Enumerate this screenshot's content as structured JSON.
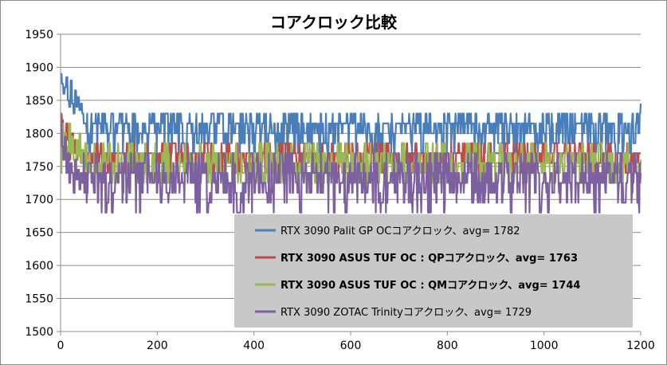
{
  "chart_data": {
    "type": "line",
    "title": "コアクロック比較",
    "xlabel": "",
    "ylabel": "",
    "xlim": [
      0,
      1200
    ],
    "ylim": [
      1500,
      1950
    ],
    "x_ticks": [
      0,
      200,
      400,
      600,
      800,
      1000,
      1200
    ],
    "y_ticks": [
      1500,
      1550,
      1600,
      1650,
      1700,
      1750,
      1800,
      1850,
      1900,
      1950
    ],
    "grid": "horizontal",
    "legend_position": "bottom-right, inside plot",
    "series": [
      {
        "name": "RTX 3090 Palit GP OCコアクロック、avg= 1782",
        "color": "#4a7ebb",
        "bold": false,
        "start_levels": [
          1890,
          1875,
          1860,
          1870,
          1885,
          1850,
          1840,
          1880,
          1845,
          1830,
          1865,
          1840,
          1855,
          1835,
          1845,
          1830
        ],
        "levels": [
          1830,
          1815,
          1800,
          1785,
          1770
        ],
        "weights": [
          0.2,
          0.35,
          0.2,
          0.15,
          0.1
        ],
        "end_value": 1845
      },
      {
        "name": "RTX 3090 ASUS TUF OC : QPコアクロック、avg= 1763",
        "color": "#be4b48",
        "bold": true,
        "start_levels": [
          1830,
          1820,
          1800,
          1780,
          1815,
          1790,
          1760,
          1775,
          1800,
          1770,
          1790,
          1760,
          1780,
          1770,
          1755,
          1775
        ],
        "levels": [
          1785,
          1770,
          1755,
          1740
        ],
        "weights": [
          0.15,
          0.45,
          0.25,
          0.15
        ],
        "end_value": 1770
      },
      {
        "name": "RTX 3090 ASUS TUF OC : QMコアクロック、avg= 1744",
        "color": "#98b954",
        "bold": true,
        "start_levels": [
          1740,
          1815,
          1760,
          1800,
          1780,
          1750,
          1815,
          1770,
          1795,
          1760,
          1745,
          1790,
          1765,
          1800,
          1755,
          1775
        ],
        "levels": [
          1785,
          1770,
          1755,
          1740,
          1725
        ],
        "weights": [
          0.08,
          0.2,
          0.32,
          0.25,
          0.15
        ],
        "end_value": 1760
      },
      {
        "name": "RTX 3090 ZOTAC Trinityコアクロック、avg= 1729",
        "color": "#7d60a0",
        "bold": false,
        "start_levels": [
          1820,
          1780,
          1760,
          1795,
          1740,
          1770,
          1725,
          1755,
          1740,
          1710,
          1760,
          1730,
          1745,
          1715,
          1740,
          1725
        ],
        "levels": [
          1770,
          1755,
          1740,
          1725,
          1710,
          1695,
          1680
        ],
        "weights": [
          0.08,
          0.17,
          0.23,
          0.22,
          0.15,
          0.1,
          0.05
        ],
        "end_value": 1740
      }
    ]
  }
}
